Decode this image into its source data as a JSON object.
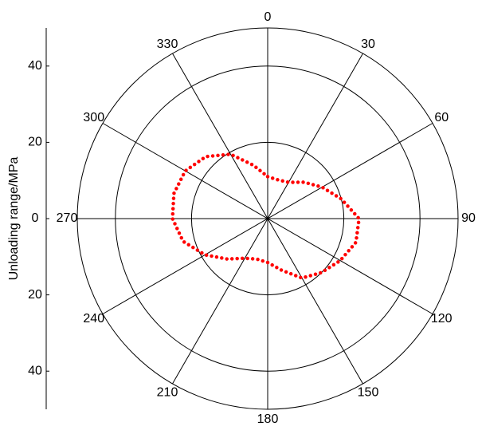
{
  "chart_data": {
    "type": "polar",
    "y_label": "Unloading range/MPa",
    "theta": [
      0,
      15,
      30,
      45,
      60,
      75,
      90,
      105,
      120,
      135,
      150,
      165,
      180,
      195,
      210,
      225,
      240,
      255,
      270,
      285,
      300,
      315,
      330,
      345
    ],
    "r": [
      11,
      10.5,
      11,
      13.5,
      16.5,
      20,
      24,
      24,
      22,
      20,
      18,
      14,
      11.5,
      11,
      12,
      15,
      19,
      23,
      25,
      25.5,
      25,
      23,
      19.5,
      14.5
    ],
    "color": "#ff0000",
    "rlim": [
      0,
      50
    ],
    "rticks": [
      20,
      40
    ],
    "thetaticks": [
      0,
      30,
      60,
      90,
      120,
      150,
      180,
      210,
      240,
      270,
      300,
      330
    ],
    "ylim": [
      -50,
      50
    ],
    "yticks": [
      {
        "value": 40,
        "label": "40"
      },
      20,
      0,
      {
        "value": -20,
        "label": "20"
      },
      {
        "value": -40,
        "label": "40"
      }
    ]
  }
}
